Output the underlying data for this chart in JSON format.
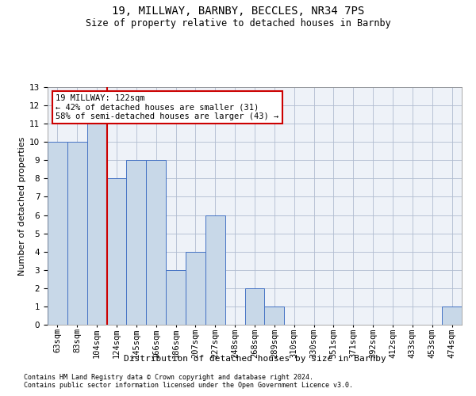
{
  "title1": "19, MILLWAY, BARNBY, BECCLES, NR34 7PS",
  "title2": "Size of property relative to detached houses in Barnby",
  "xlabel": "Distribution of detached houses by size in Barnby",
  "ylabel": "Number of detached properties",
  "footer1": "Contains HM Land Registry data © Crown copyright and database right 2024.",
  "footer2": "Contains public sector information licensed under the Open Government Licence v3.0.",
  "bin_labels": [
    "63sqm",
    "83sqm",
    "104sqm",
    "124sqm",
    "145sqm",
    "166sqm",
    "186sqm",
    "207sqm",
    "227sqm",
    "248sqm",
    "268sqm",
    "289sqm",
    "310sqm",
    "330sqm",
    "351sqm",
    "371sqm",
    "392sqm",
    "412sqm",
    "433sqm",
    "453sqm",
    "474sqm"
  ],
  "bar_values": [
    10,
    10,
    11,
    8,
    9,
    9,
    3,
    4,
    6,
    0,
    2,
    1,
    0,
    0,
    0,
    0,
    0,
    0,
    0,
    0,
    1
  ],
  "bar_color": "#c8d8e8",
  "bar_edge_color": "#4472c4",
  "vline_x_index": 2.5,
  "vline_color": "#cc0000",
  "annotation_line1": "19 MILLWAY: 122sqm",
  "annotation_line2": "← 42% of detached houses are smaller (31)",
  "annotation_line3": "58% of semi-detached houses are larger (43) →",
  "annotation_box_edge": "#cc0000",
  "ylim": [
    0,
    13
  ],
  "yticks": [
    0,
    1,
    2,
    3,
    4,
    5,
    6,
    7,
    8,
    9,
    10,
    11,
    12,
    13
  ],
  "grid_color": "#b0bcd0",
  "background_color": "#eef2f8",
  "title1_fontsize": 10,
  "title2_fontsize": 8.5,
  "axis_label_fontsize": 8,
  "tick_fontsize": 7.5,
  "footer_fontsize": 6,
  "annotation_fontsize": 7.5
}
